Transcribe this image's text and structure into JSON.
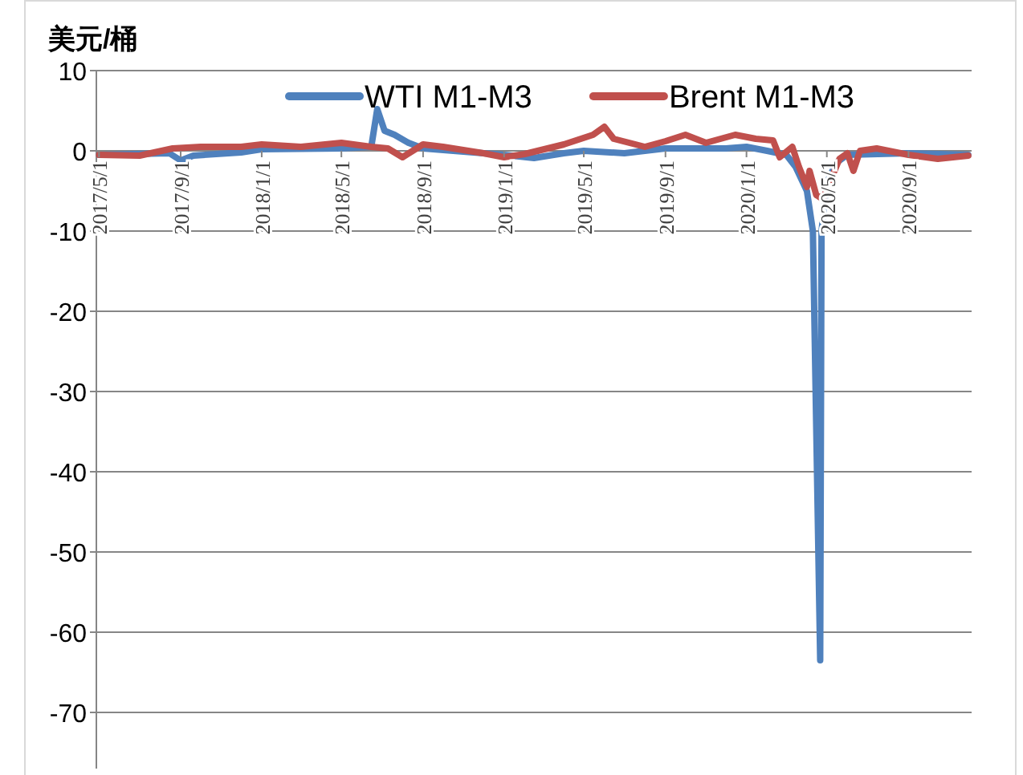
{
  "chart_data": {
    "type": "line",
    "ylabel": "美元/桶",
    "legend": "top",
    "grid": "y",
    "line_style": "solid",
    "xlim": [
      "2017-04-27",
      "2020-12-05"
    ],
    "ylim": [
      -77,
      10
    ],
    "yticks": [
      10,
      0,
      -10,
      -20,
      -30,
      -40,
      -50,
      -60,
      -70
    ],
    "xticks": [
      {
        "value": "2017-05-01",
        "label": "2017/5/1"
      },
      {
        "value": "2017-09-01",
        "label": "2017/9/1"
      },
      {
        "value": "2018-01-01",
        "label": "2018/1/1"
      },
      {
        "value": "2018-05-01",
        "label": "2018/5/1"
      },
      {
        "value": "2018-09-01",
        "label": "2018/9/1"
      },
      {
        "value": "2019-01-01",
        "label": "2019/1/1"
      },
      {
        "value": "2019-05-01",
        "label": "2019/5/1"
      },
      {
        "value": "2019-09-01",
        "label": "2019/9/1"
      },
      {
        "value": "2020-01-01",
        "label": "2020/1/1"
      },
      {
        "value": "2020-05-01",
        "label": "2020/5/1"
      },
      {
        "value": "2020-09-01",
        "label": "2020/9/1"
      }
    ],
    "series": [
      {
        "name": "WTI M1-M3",
        "color": "#4f81bd",
        "x": [
          "2017-05-01",
          "2017-08-15",
          "2017-09-01",
          "2017-09-20",
          "2017-12-01",
          "2018-01-01",
          "2018-05-01",
          "2018-06-15",
          "2018-06-24",
          "2018-07-05",
          "2018-07-20",
          "2018-08-10",
          "2018-09-01",
          "2018-12-01",
          "2019-01-01",
          "2019-02-15",
          "2019-04-01",
          "2019-05-01",
          "2019-07-01",
          "2019-09-01",
          "2019-12-01",
          "2020-01-01",
          "2020-02-01",
          "2020-03-01",
          "2020-03-15",
          "2020-04-01",
          "2020-04-10",
          "2020-04-21",
          "2020-04-23",
          "2020-05-01",
          "2020-05-15",
          "2020-06-01",
          "2020-09-01",
          "2020-11-30"
        ],
        "values": [
          -0.5,
          -0.3,
          -1.2,
          -0.6,
          -0.2,
          0.2,
          0.3,
          0.5,
          5.2,
          2.5,
          2,
          1,
          0.3,
          -0.3,
          -0.5,
          -0.9,
          -0.3,
          0,
          -0.3,
          0.3,
          0.3,
          0.5,
          0,
          -0.5,
          -2,
          -5,
          -10,
          -63.5,
          -10,
          -4,
          -1.5,
          -0.5,
          -0.3,
          -0.5
        ]
      },
      {
        "name": "Brent M1-M3",
        "color": "#c0504d",
        "x": [
          "2017-05-01",
          "2017-07-01",
          "2017-08-20",
          "2017-10-01",
          "2017-12-01",
          "2018-01-01",
          "2018-03-01",
          "2018-05-01",
          "2018-06-15",
          "2018-07-10",
          "2018-08-01",
          "2018-09-01",
          "2018-10-01",
          "2018-12-01",
          "2019-01-01",
          "2019-02-01",
          "2019-04-01",
          "2019-05-15",
          "2019-06-01",
          "2019-06-15",
          "2019-08-01",
          "2019-09-01",
          "2019-10-01",
          "2019-11-01",
          "2019-12-15",
          "2020-01-15",
          "2020-02-10",
          "2020-02-20",
          "2020-03-10",
          "2020-03-20",
          "2020-04-01",
          "2020-04-05",
          "2020-04-15",
          "2020-04-25",
          "2020-05-05",
          "2020-05-20",
          "2020-06-01",
          "2020-06-10",
          "2020-06-20",
          "2020-07-15",
          "2020-09-01",
          "2020-10-15",
          "2020-11-30"
        ],
        "values": [
          -0.5,
          -0.6,
          0.3,
          0.5,
          0.5,
          0.8,
          0.5,
          1,
          0.5,
          0.3,
          -0.8,
          0.8,
          0.5,
          -0.3,
          -0.8,
          -0.4,
          0.8,
          2,
          3,
          1.5,
          0.5,
          1.2,
          2,
          1,
          2,
          1.5,
          1.3,
          -0.8,
          0.5,
          -2,
          -4.5,
          -2.5,
          -5.5,
          -6,
          -4,
          -1,
          -0.3,
          -2.5,
          0,
          0.3,
          -0.5,
          -1,
          -0.6
        ]
      }
    ]
  }
}
